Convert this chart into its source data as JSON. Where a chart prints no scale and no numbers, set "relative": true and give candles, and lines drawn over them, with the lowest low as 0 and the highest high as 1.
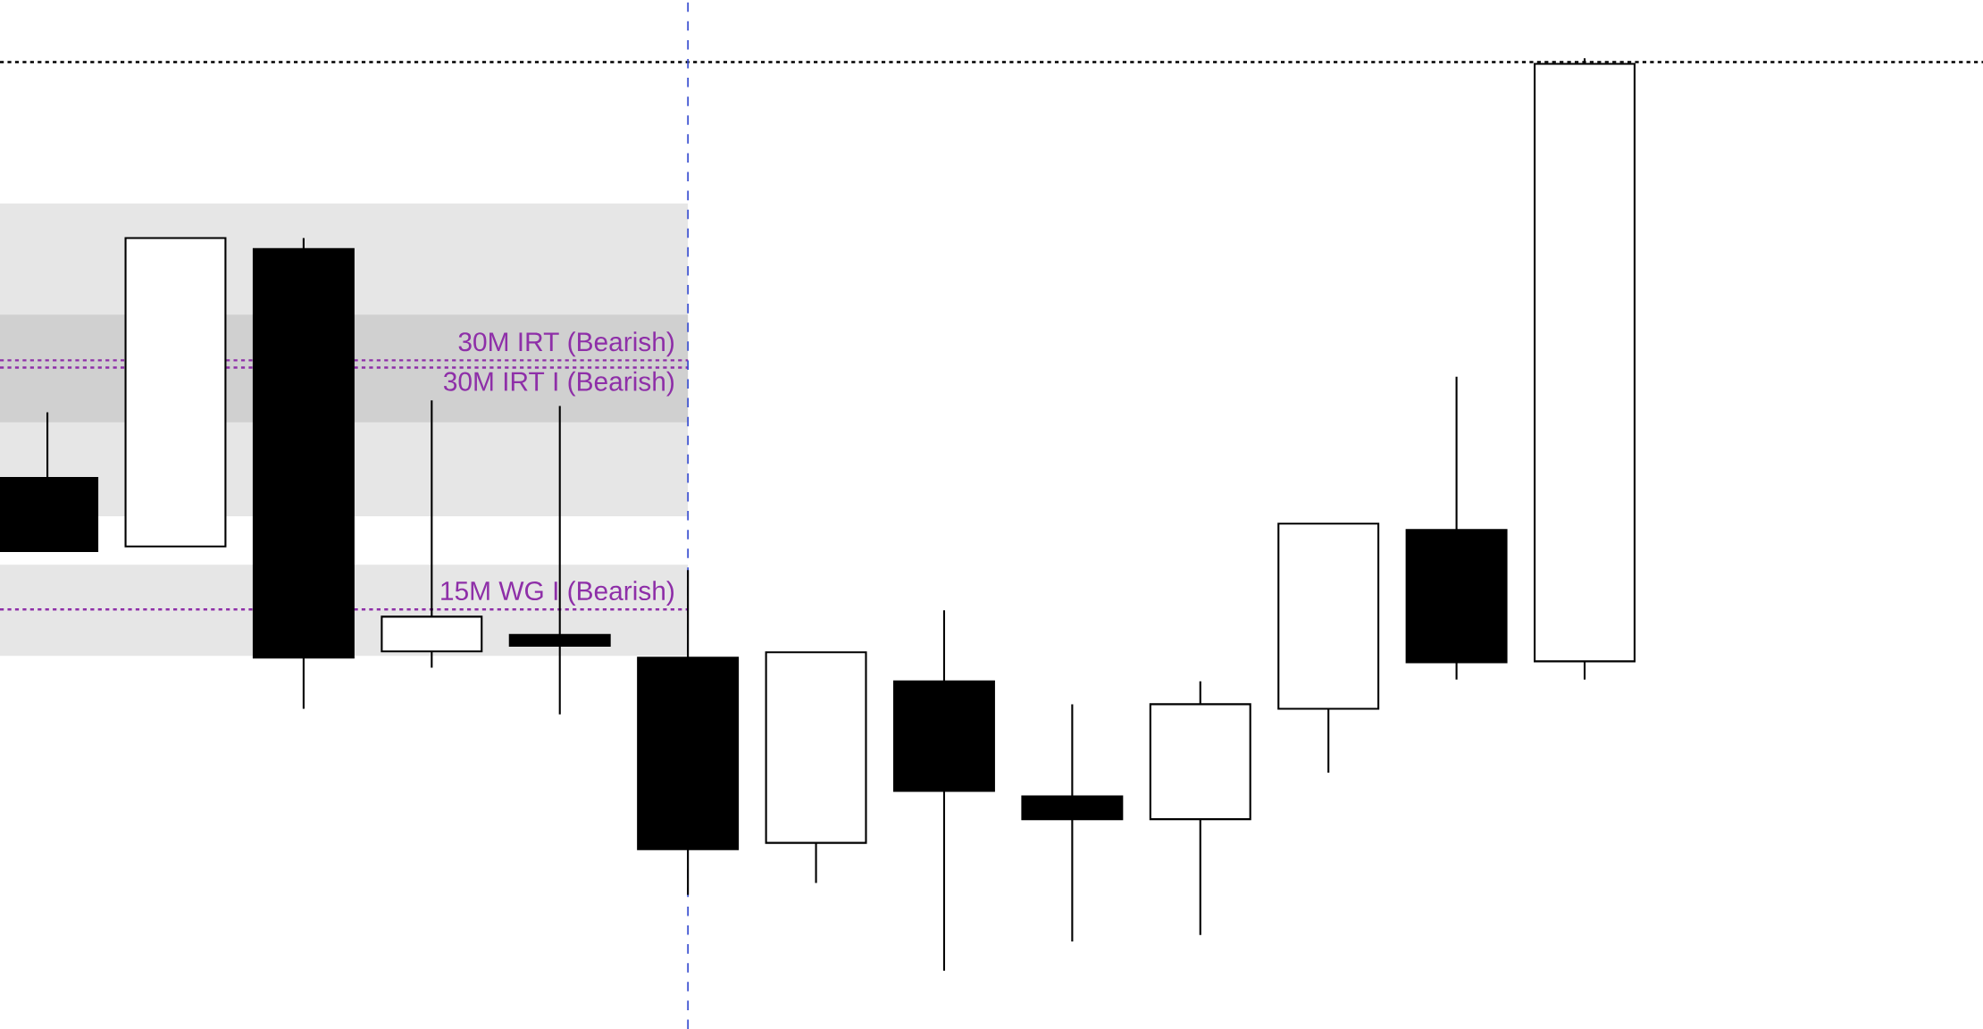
{
  "chart_data": {
    "type": "candlestick",
    "relative": true,
    "categories": [
      null,
      null,
      null,
      null,
      null,
      null,
      null,
      null,
      null,
      null,
      null,
      null,
      null
    ],
    "ohlc": [
      [
        0.54,
        0.612,
        0.46,
        0.46
      ],
      [
        0.465,
        0.803,
        0.465,
        0.803
      ],
      [
        0.791,
        0.803,
        0.287,
        0.343
      ],
      [
        0.35,
        0.625,
        0.332,
        0.388
      ],
      [
        0.368,
        0.619,
        0.281,
        0.356
      ],
      [
        0.343,
        0.439,
        0.083,
        0.133
      ],
      [
        0.14,
        0.349,
        0.096,
        0.349
      ],
      [
        0.317,
        0.395,
        0.0,
        0.197
      ],
      [
        0.191,
        0.292,
        0.032,
        0.166
      ],
      [
        0.166,
        0.317,
        0.039,
        0.292
      ],
      [
        0.287,
        0.49,
        0.217,
        0.49
      ],
      [
        0.483,
        0.651,
        0.319,
        0.338
      ],
      [
        0.339,
        1.0,
        0.319,
        0.994
      ]
    ],
    "ref_lines": [
      {
        "axis": "y",
        "value": 0.996,
        "color": "#000000",
        "line_style": "dotted"
      },
      {
        "axis": "y",
        "value": 0.669,
        "label": "30M IRT (Bearish)",
        "color": "#8e2fa8",
        "line_style": "dotted"
      },
      {
        "axis": "y",
        "value": 0.661,
        "label": "30M IRT I (Bearish)",
        "color": "#8e2fa8",
        "line_style": "dotted"
      },
      {
        "axis": "y",
        "value": 0.396,
        "label": "15M WG I (Bearish)",
        "color": "#8e2fa8",
        "line_style": "dotted"
      }
    ],
    "bands": [
      {
        "axis": "y",
        "from": 0.498,
        "to": 0.841,
        "color": "#e6e6e6"
      },
      {
        "axis": "y",
        "from": 0.601,
        "to": 0.719,
        "color": "#d0d0d0"
      },
      {
        "axis": "y",
        "from": 0.345,
        "to": 0.445,
        "color": "#e6e6e6"
      }
    ]
  }
}
